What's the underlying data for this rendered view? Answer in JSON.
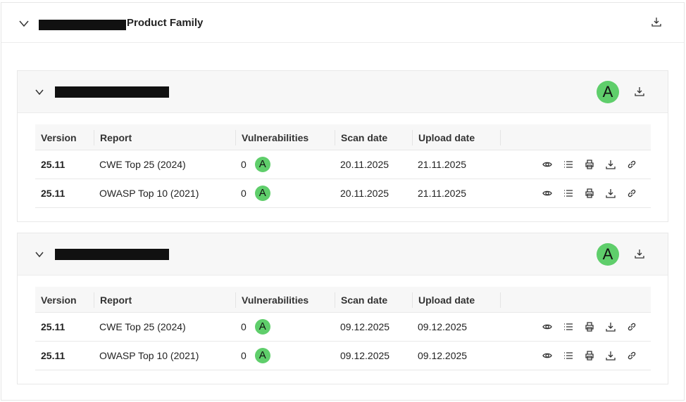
{
  "family": {
    "title_suffix": "Product Family",
    "icons": [
      "chevron-down-icon",
      "download-icon"
    ]
  },
  "products": [
    {
      "grade": "A",
      "rows": [
        {
          "version": "25.11",
          "report": "CWE Top 25 (2024)",
          "vulns": "0",
          "grade": "A",
          "scan": "20.11.2025",
          "upload": "21.11.2025"
        },
        {
          "version": "25.11",
          "report": "OWASP Top 10 (2021)",
          "vulns": "0",
          "grade": "A",
          "scan": "20.11.2025",
          "upload": "21.11.2025"
        }
      ]
    },
    {
      "grade": "A",
      "rows": [
        {
          "version": "25.11",
          "report": "CWE Top 25 (2024)",
          "vulns": "0",
          "grade": "A",
          "scan": "09.12.2025",
          "upload": "09.12.2025"
        },
        {
          "version": "25.11",
          "report": "OWASP Top 10 (2021)",
          "vulns": "0",
          "grade": "A",
          "scan": "09.12.2025",
          "upload": "09.12.2025"
        }
      ]
    }
  ],
  "columns": {
    "version": "Version",
    "report": "Report",
    "vulns": "Vulnerabilities",
    "scan": "Scan date",
    "upload": "Upload date"
  },
  "row_actions": [
    "eye-icon",
    "list-icon",
    "print-icon",
    "download-icon",
    "link-icon"
  ],
  "colors": {
    "grade_a": "#5fce6b"
  }
}
